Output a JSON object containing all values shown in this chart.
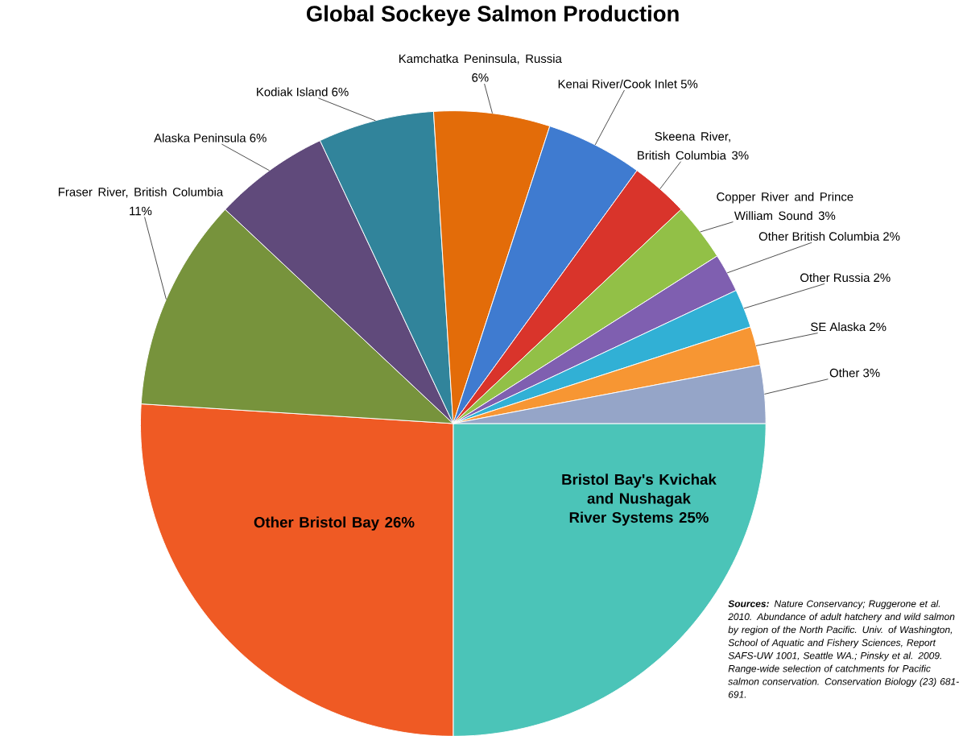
{
  "chart_data": {
    "type": "pie",
    "title": "Global Sockeye Salmon Production",
    "categories": [
      "Bristol Bay's Kvichak and Nushagak River Systems",
      "Other Bristol Bay",
      "Fraser River, British Columbia",
      "Alaska Peninsula",
      "Kodiak Island",
      "Kamchatka Peninsula, Russia",
      "Kenai River/Cook Inlet",
      "Skeena River, British Columbia",
      "Copper River and Prince William Sound",
      "Other British Columbia",
      "Other Russia",
      "SE Alaska",
      "Other"
    ],
    "values": [
      25,
      26,
      11,
      6,
      6,
      6,
      5,
      3,
      3,
      2,
      2,
      2,
      3
    ],
    "value_labels": [
      "25%",
      "26%",
      "11%",
      "6%",
      "6%",
      "6%",
      "5%",
      "3%",
      "3%",
      "2%",
      "2%",
      "2%",
      "3%"
    ],
    "colors": [
      "#4bc4b8",
      "#ef5a24",
      "#77933c",
      "#604a7b",
      "#31849b",
      "#e36c09",
      "#3f7bd0",
      "#d9342b",
      "#92c047",
      "#7f5fb0",
      "#31b0d5",
      "#f79633",
      "#95a5c8"
    ],
    "annotations": [
      "**Sources:** Nature Conservancy; Ruggerone et al. 2010. Abundance of adult hatchery and wild salmon by region of the North Pacific. Univ. of Washington, School of Aquatic and Fishery Sciences, Report SAFS-UW 1001, Seattle WA.; Pinsky et al. 2009. Range-wide selection of catchments for Pacific salmon conservation. Conservation Biology (23) 681-691."
    ]
  }
}
